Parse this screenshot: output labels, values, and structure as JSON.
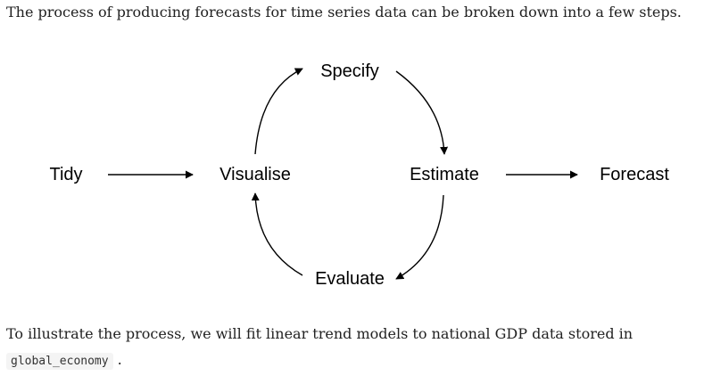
{
  "intro_text": "The process of producing forecasts for time series data can be broken down into a few steps.",
  "diagram": {
    "nodes": {
      "tidy": "Tidy",
      "visualise": "Visualise",
      "specify": "Specify",
      "estimate": "Estimate",
      "evaluate": "Evaluate",
      "forecast": "Forecast"
    }
  },
  "outro": {
    "text": "To illustrate the process, we will fit linear trend models to national GDP data stored in",
    "code": "global_economy",
    "trailing": "."
  }
}
